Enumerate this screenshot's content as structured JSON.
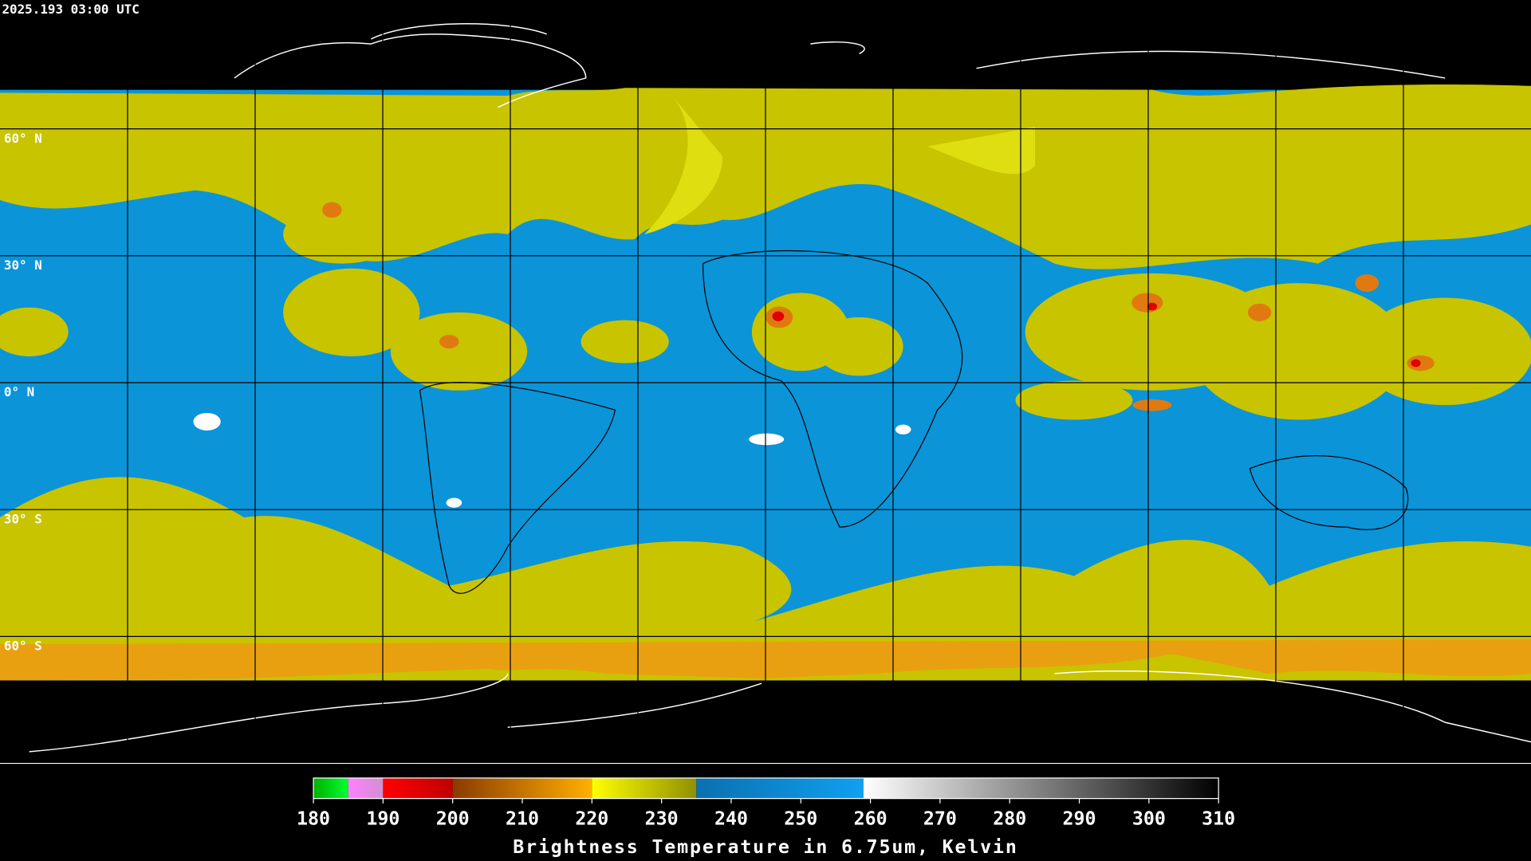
{
  "timestamp": "2025.193 03:00 UTC",
  "map": {
    "lat_range": [
      90,
      -90
    ],
    "lat_grid": [
      {
        "value": 60,
        "label": "60° N"
      },
      {
        "value": 30,
        "label": "30° N"
      },
      {
        "value": 0,
        "label": "0° N"
      },
      {
        "value": -30,
        "label": "30° S"
      },
      {
        "value": -60,
        "label": "60° S"
      }
    ]
  },
  "colorbar": {
    "label": "Brightness Temperature in 6.75um, Kelvin",
    "range": [
      180,
      310
    ],
    "ticks": [
      180,
      190,
      200,
      210,
      220,
      230,
      240,
      250,
      260,
      270,
      280,
      290,
      300,
      310
    ],
    "segments": [
      {
        "from": 180,
        "to": 185,
        "colors": [
          "#00b000",
          "#00ff30"
        ]
      },
      {
        "from": 185,
        "to": 190,
        "colors": [
          "#ff80ff",
          "#d090d0"
        ]
      },
      {
        "from": 190,
        "to": 200,
        "colors": [
          "#ff0000",
          "#c00000"
        ]
      },
      {
        "from": 200,
        "to": 220,
        "colors": [
          "#8a3a00",
          "#ffb000"
        ]
      },
      {
        "from": 220,
        "to": 235,
        "colors": [
          "#ffff00",
          "#909000"
        ]
      },
      {
        "from": 235,
        "to": 259,
        "colors": [
          "#0a70b0",
          "#10a0f0"
        ]
      },
      {
        "from": 259,
        "to": 310,
        "colors": [
          "#ffffff",
          "#000000"
        ]
      }
    ]
  }
}
